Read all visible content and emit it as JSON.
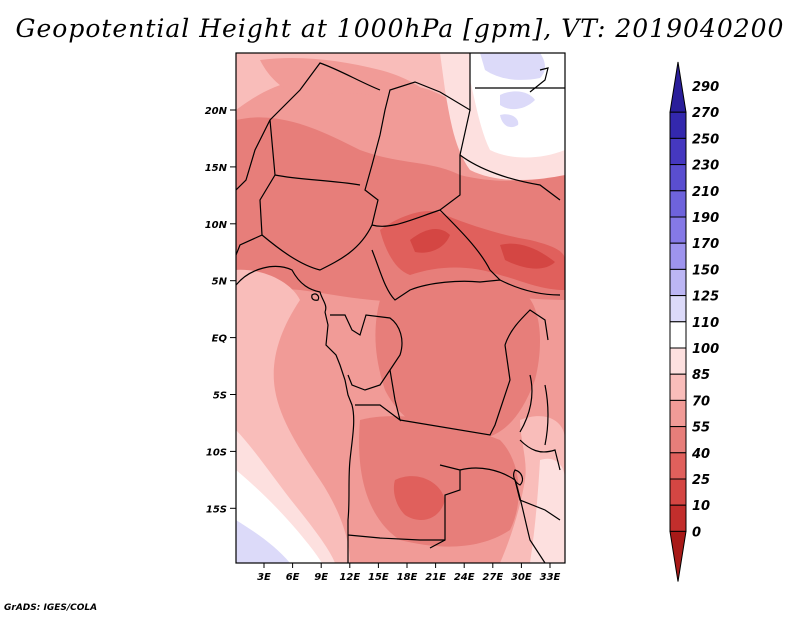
{
  "title": "Geopotential Height at 1000hPa [gpm], VT: 2019040200",
  "credit": "GrADS: IGES/COLA",
  "map": {
    "lat_ticks": [
      "20N",
      "15N",
      "10N",
      "5N",
      "EQ",
      "5S",
      "10S",
      "15S"
    ],
    "lon_ticks": [
      "3E",
      "6E",
      "9E",
      "12E",
      "15E",
      "18E",
      "21E",
      "24E",
      "27E",
      "30E",
      "33E"
    ]
  },
  "colorbar": {
    "levels": [
      "290",
      "270",
      "250",
      "230",
      "210",
      "190",
      "170",
      "150",
      "125",
      "110",
      "100",
      "85",
      "70",
      "55",
      "40",
      "25",
      "10",
      "0"
    ],
    "colors": [
      "#2a1e9a",
      "#3328ad",
      "#4538c0",
      "#5a4ed0",
      "#6e63dc",
      "#8579e6",
      "#9e94ee",
      "#bcb6f4",
      "#dcdaf9",
      "#ffffff",
      "#fde0df",
      "#f9bdba",
      "#f19b97",
      "#e77e7a",
      "#e0605c",
      "#d44643",
      "#c22e2c",
      "#a81a18"
    ]
  }
}
